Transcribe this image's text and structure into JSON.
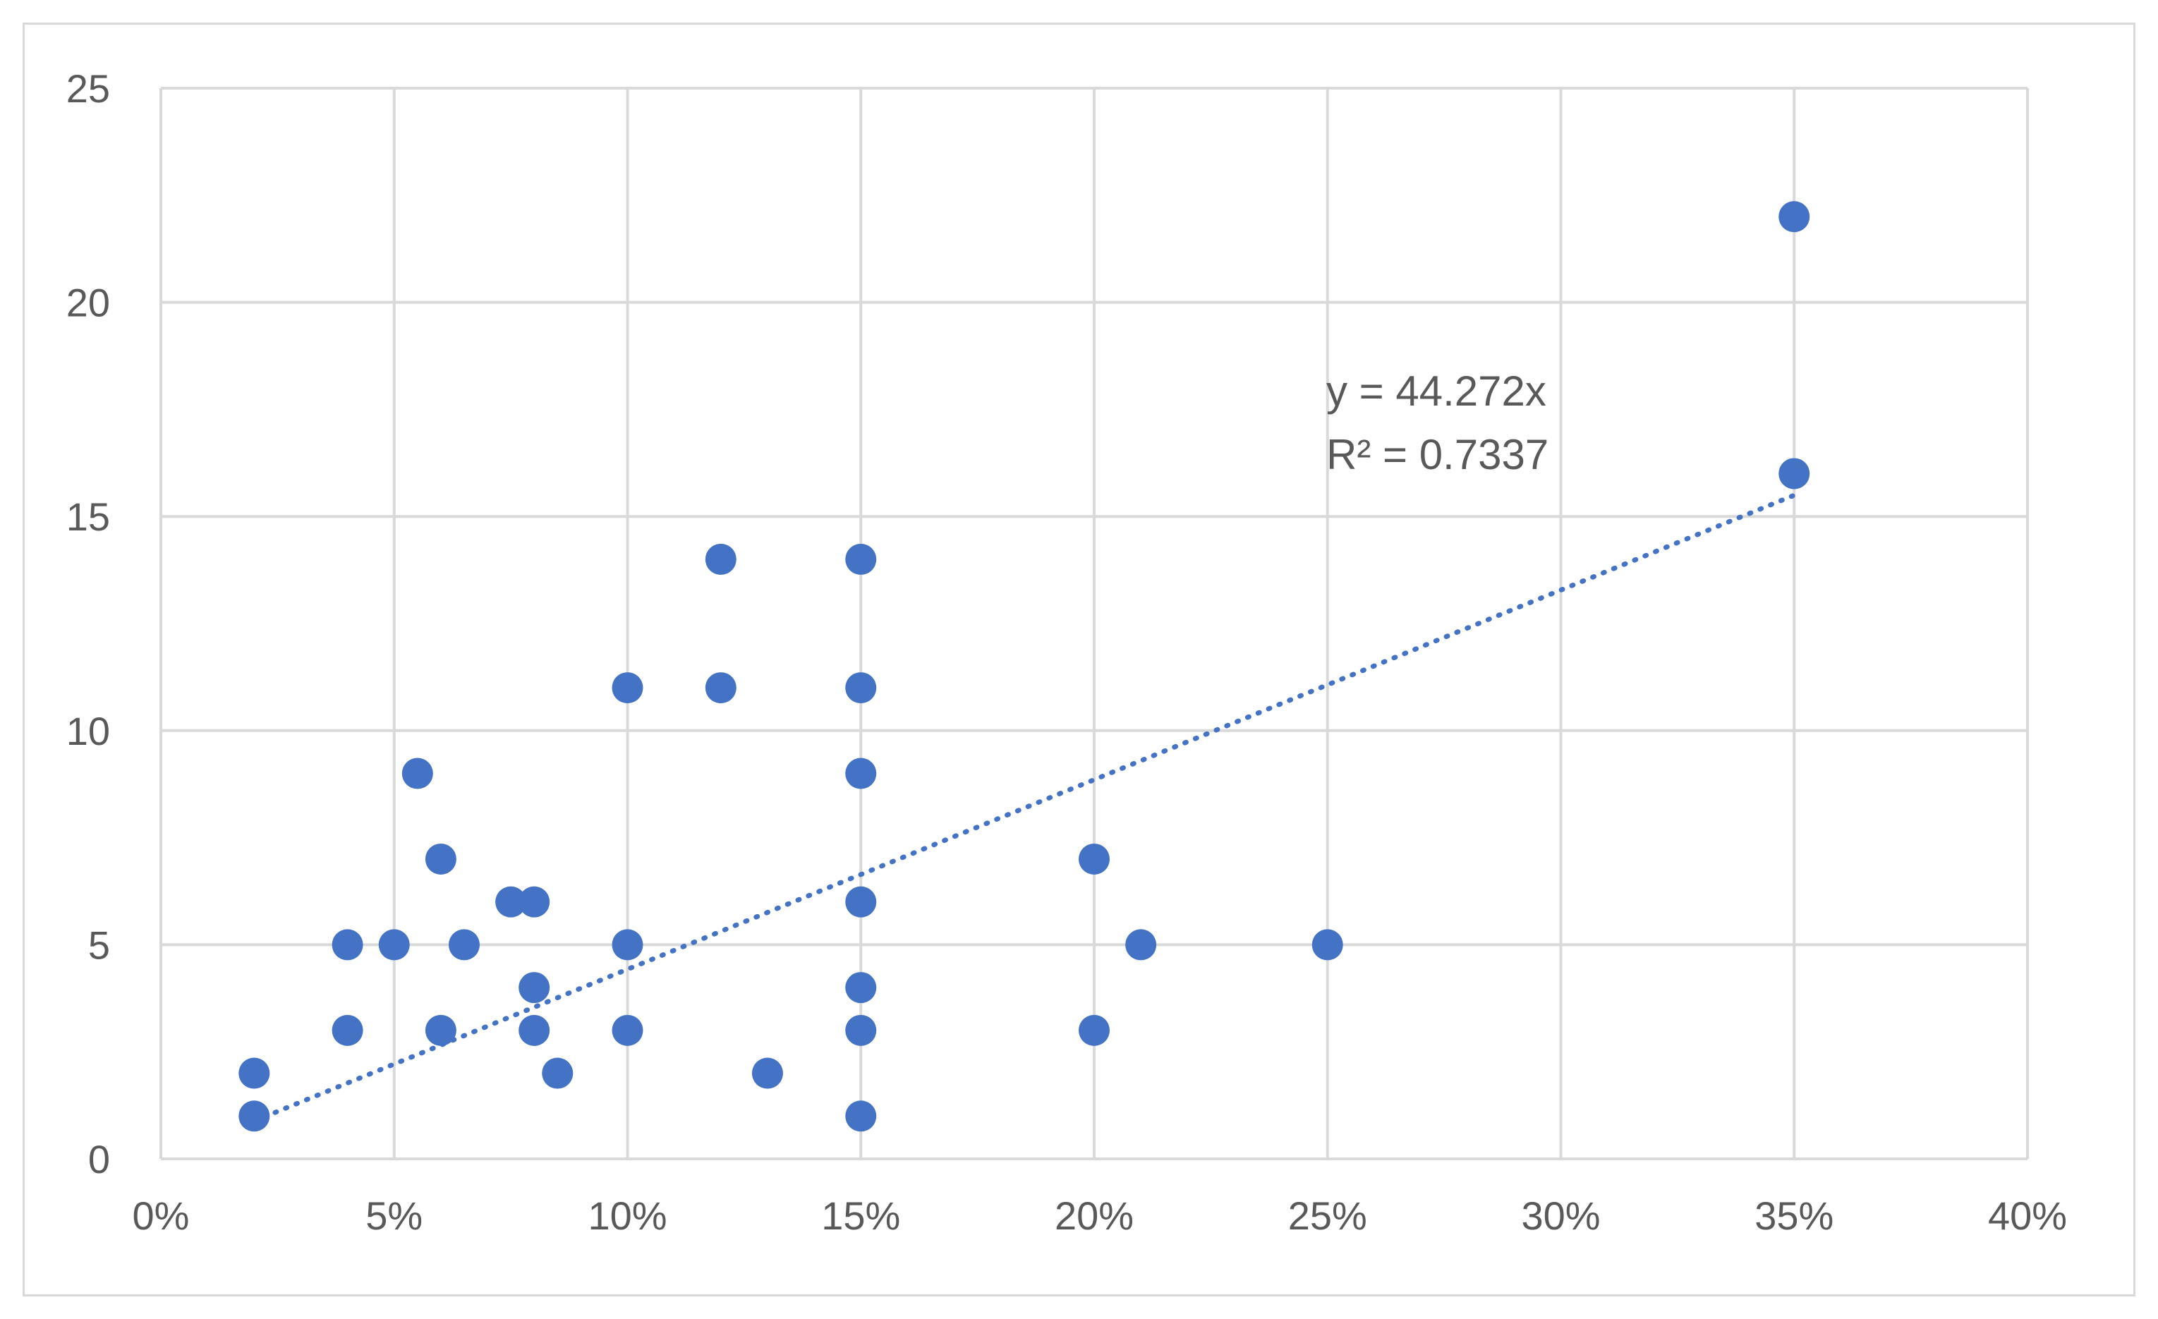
{
  "colors": {
    "series": "#4472c4",
    "grid": "#d9d9d9",
    "text": "#595959"
  },
  "chart_data": {
    "type": "scatter",
    "title": "",
    "xlabel": "",
    "ylabel": "",
    "xlim": [
      0,
      0.4
    ],
    "ylim": [
      0,
      25
    ],
    "x_ticks": [
      0,
      0.05,
      0.1,
      0.15,
      0.2,
      0.25,
      0.3,
      0.35,
      0.4
    ],
    "x_tick_labels": [
      "0%",
      "5%",
      "10%",
      "15%",
      "20%",
      "25%",
      "30%",
      "35%",
      "40%"
    ],
    "y_ticks": [
      0,
      5,
      10,
      15,
      20,
      25
    ],
    "y_tick_labels": [
      "0",
      "5",
      "10",
      "15",
      "20",
      "25"
    ],
    "grid": true,
    "legend": "none",
    "series": [
      {
        "color": "#4472c4",
        "points": [
          [
            0.02,
            2
          ],
          [
            0.02,
            1
          ],
          [
            0.04,
            5
          ],
          [
            0.04,
            3
          ],
          [
            0.05,
            5
          ],
          [
            0.055,
            9
          ],
          [
            0.06,
            7
          ],
          [
            0.06,
            3
          ],
          [
            0.065,
            5
          ],
          [
            0.075,
            6
          ],
          [
            0.08,
            6
          ],
          [
            0.08,
            4
          ],
          [
            0.08,
            3
          ],
          [
            0.085,
            2
          ],
          [
            0.1,
            11
          ],
          [
            0.1,
            5
          ],
          [
            0.1,
            3
          ],
          [
            0.12,
            14
          ],
          [
            0.12,
            11
          ],
          [
            0.13,
            2
          ],
          [
            0.15,
            14
          ],
          [
            0.15,
            11
          ],
          [
            0.15,
            9
          ],
          [
            0.15,
            6
          ],
          [
            0.15,
            4
          ],
          [
            0.15,
            3
          ],
          [
            0.15,
            1
          ],
          [
            0.2,
            7
          ],
          [
            0.2,
            3
          ],
          [
            0.21,
            5
          ],
          [
            0.25,
            5
          ],
          [
            0.35,
            22
          ],
          [
            0.35,
            16
          ]
        ]
      }
    ],
    "trendline": {
      "type": "linear-through-origin",
      "slope": 44.272,
      "x_range": [
        0.02,
        0.35
      ],
      "equation": "y = 44.272x",
      "r_squared": "R² = 0.7337"
    }
  }
}
